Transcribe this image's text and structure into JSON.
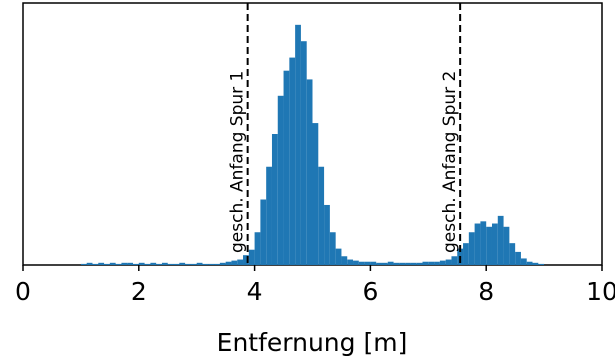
{
  "chart_data": {
    "type": "histogram",
    "title": "",
    "xlabel": "Entfernung [m]",
    "ylabel": "",
    "xlim": [
      0,
      10
    ],
    "xticks": [
      "0",
      "2",
      "4",
      "6",
      "8",
      "10"
    ],
    "y_tick_labels_shown": false,
    "color": "#1f77b4",
    "bin_width": 0.1,
    "bin_starts": [
      1.0,
      1.1,
      1.2,
      1.3,
      1.4,
      1.5,
      1.6,
      1.7,
      1.8,
      1.9,
      2.0,
      2.1,
      2.2,
      2.3,
      2.4,
      2.5,
      2.6,
      2.7,
      2.8,
      2.9,
      3.0,
      3.1,
      3.2,
      3.3,
      3.4,
      3.5,
      3.6,
      3.7,
      3.8,
      3.9,
      4.0,
      4.1,
      4.2,
      4.3,
      4.4,
      4.5,
      4.6,
      4.7,
      4.8,
      4.9,
      5.0,
      5.1,
      5.2,
      5.3,
      5.4,
      5.5,
      5.6,
      5.7,
      5.8,
      5.9,
      6.0,
      6.1,
      6.2,
      6.3,
      6.4,
      6.5,
      6.6,
      6.7,
      6.8,
      6.9,
      7.0,
      7.1,
      7.2,
      7.3,
      7.4,
      7.5,
      7.6,
      7.7,
      7.8,
      7.9,
      8.0,
      8.1,
      8.2,
      8.3,
      8.4,
      8.5,
      8.6,
      8.7,
      8.8,
      8.9
    ],
    "counts": [
      1,
      2,
      1,
      2,
      1,
      2,
      1,
      2,
      2,
      1,
      2,
      1,
      2,
      1,
      2,
      1,
      1,
      2,
      1,
      1,
      2,
      1,
      1,
      1,
      2,
      3,
      4,
      5,
      9,
      14,
      30,
      60,
      90,
      120,
      155,
      178,
      190,
      220,
      205,
      170,
      130,
      90,
      55,
      30,
      15,
      8,
      5,
      4,
      3,
      3,
      3,
      2,
      2,
      3,
      2,
      2,
      2,
      2,
      2,
      3,
      3,
      3,
      4,
      5,
      8,
      15,
      20,
      30,
      38,
      40,
      35,
      38,
      45,
      35,
      20,
      12,
      6,
      3,
      2,
      1
    ],
    "y_max": 240,
    "reference_lines": [
      {
        "x": 3.88,
        "label": "gesch. Anfang Spur 1"
      },
      {
        "x": 7.55,
        "label": "gesch. Anfang Spur 2"
      }
    ]
  }
}
